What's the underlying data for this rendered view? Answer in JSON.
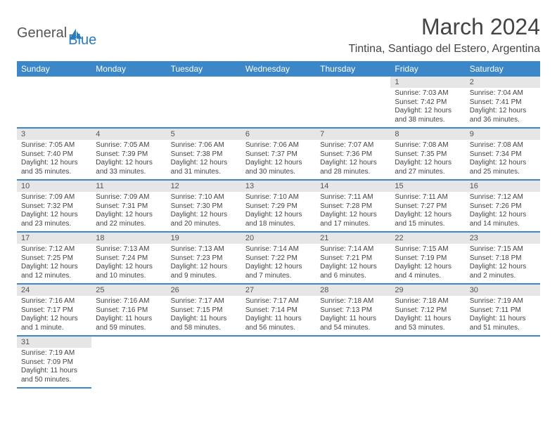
{
  "logo": {
    "word1": "General",
    "word2": "Blue"
  },
  "title": "March 2024",
  "location": "Tintina, Santiago del Estero, Argentina",
  "day_headers": [
    "Sunday",
    "Monday",
    "Tuesday",
    "Wednesday",
    "Thursday",
    "Friday",
    "Saturday"
  ],
  "colors": {
    "header_bg": "#3b87c8",
    "header_fg": "#ffffff",
    "daynum_bg": "#e6e6e6",
    "border": "#3b87c8",
    "logo_blue": "#2b7bbf"
  },
  "cells": [
    {
      "n": "",
      "t": ""
    },
    {
      "n": "",
      "t": ""
    },
    {
      "n": "",
      "t": ""
    },
    {
      "n": "",
      "t": ""
    },
    {
      "n": "",
      "t": ""
    },
    {
      "n": "1",
      "t": "Sunrise: 7:03 AM\nSunset: 7:42 PM\nDaylight: 12 hours and 38 minutes."
    },
    {
      "n": "2",
      "t": "Sunrise: 7:04 AM\nSunset: 7:41 PM\nDaylight: 12 hours and 36 minutes."
    },
    {
      "n": "3",
      "t": "Sunrise: 7:05 AM\nSunset: 7:40 PM\nDaylight: 12 hours and 35 minutes."
    },
    {
      "n": "4",
      "t": "Sunrise: 7:05 AM\nSunset: 7:39 PM\nDaylight: 12 hours and 33 minutes."
    },
    {
      "n": "5",
      "t": "Sunrise: 7:06 AM\nSunset: 7:38 PM\nDaylight: 12 hours and 31 minutes."
    },
    {
      "n": "6",
      "t": "Sunrise: 7:06 AM\nSunset: 7:37 PM\nDaylight: 12 hours and 30 minutes."
    },
    {
      "n": "7",
      "t": "Sunrise: 7:07 AM\nSunset: 7:36 PM\nDaylight: 12 hours and 28 minutes."
    },
    {
      "n": "8",
      "t": "Sunrise: 7:08 AM\nSunset: 7:35 PM\nDaylight: 12 hours and 27 minutes."
    },
    {
      "n": "9",
      "t": "Sunrise: 7:08 AM\nSunset: 7:34 PM\nDaylight: 12 hours and 25 minutes."
    },
    {
      "n": "10",
      "t": "Sunrise: 7:09 AM\nSunset: 7:32 PM\nDaylight: 12 hours and 23 minutes."
    },
    {
      "n": "11",
      "t": "Sunrise: 7:09 AM\nSunset: 7:31 PM\nDaylight: 12 hours and 22 minutes."
    },
    {
      "n": "12",
      "t": "Sunrise: 7:10 AM\nSunset: 7:30 PM\nDaylight: 12 hours and 20 minutes."
    },
    {
      "n": "13",
      "t": "Sunrise: 7:10 AM\nSunset: 7:29 PM\nDaylight: 12 hours and 18 minutes."
    },
    {
      "n": "14",
      "t": "Sunrise: 7:11 AM\nSunset: 7:28 PM\nDaylight: 12 hours and 17 minutes."
    },
    {
      "n": "15",
      "t": "Sunrise: 7:11 AM\nSunset: 7:27 PM\nDaylight: 12 hours and 15 minutes."
    },
    {
      "n": "16",
      "t": "Sunrise: 7:12 AM\nSunset: 7:26 PM\nDaylight: 12 hours and 14 minutes."
    },
    {
      "n": "17",
      "t": "Sunrise: 7:12 AM\nSunset: 7:25 PM\nDaylight: 12 hours and 12 minutes."
    },
    {
      "n": "18",
      "t": "Sunrise: 7:13 AM\nSunset: 7:24 PM\nDaylight: 12 hours and 10 minutes."
    },
    {
      "n": "19",
      "t": "Sunrise: 7:13 AM\nSunset: 7:23 PM\nDaylight: 12 hours and 9 minutes."
    },
    {
      "n": "20",
      "t": "Sunrise: 7:14 AM\nSunset: 7:22 PM\nDaylight: 12 hours and 7 minutes."
    },
    {
      "n": "21",
      "t": "Sunrise: 7:14 AM\nSunset: 7:21 PM\nDaylight: 12 hours and 6 minutes."
    },
    {
      "n": "22",
      "t": "Sunrise: 7:15 AM\nSunset: 7:19 PM\nDaylight: 12 hours and 4 minutes."
    },
    {
      "n": "23",
      "t": "Sunrise: 7:15 AM\nSunset: 7:18 PM\nDaylight: 12 hours and 2 minutes."
    },
    {
      "n": "24",
      "t": "Sunrise: 7:16 AM\nSunset: 7:17 PM\nDaylight: 12 hours and 1 minute."
    },
    {
      "n": "25",
      "t": "Sunrise: 7:16 AM\nSunset: 7:16 PM\nDaylight: 11 hours and 59 minutes."
    },
    {
      "n": "26",
      "t": "Sunrise: 7:17 AM\nSunset: 7:15 PM\nDaylight: 11 hours and 58 minutes."
    },
    {
      "n": "27",
      "t": "Sunrise: 7:17 AM\nSunset: 7:14 PM\nDaylight: 11 hours and 56 minutes."
    },
    {
      "n": "28",
      "t": "Sunrise: 7:18 AM\nSunset: 7:13 PM\nDaylight: 11 hours and 54 minutes."
    },
    {
      "n": "29",
      "t": "Sunrise: 7:18 AM\nSunset: 7:12 PM\nDaylight: 11 hours and 53 minutes."
    },
    {
      "n": "30",
      "t": "Sunrise: 7:19 AM\nSunset: 7:11 PM\nDaylight: 11 hours and 51 minutes."
    },
    {
      "n": "31",
      "t": "Sunrise: 7:19 AM\nSunset: 7:09 PM\nDaylight: 11 hours and 50 minutes."
    },
    {
      "n": "",
      "t": ""
    },
    {
      "n": "",
      "t": ""
    },
    {
      "n": "",
      "t": ""
    },
    {
      "n": "",
      "t": ""
    },
    {
      "n": "",
      "t": ""
    },
    {
      "n": "",
      "t": ""
    }
  ]
}
